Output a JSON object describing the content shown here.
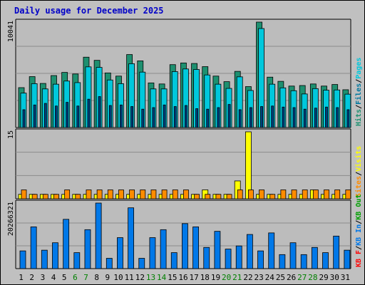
{
  "title": "Daily usage for December 2025",
  "colors": {
    "background": "#c0c0c0",
    "panel": "#bcbcbc",
    "hits": "#1e9070",
    "files": "#00c8dc",
    "pages": "#004080",
    "visits": "#ffff00",
    "sites": "#ff8c00",
    "kb_in": "#0078e8",
    "kb_out": "#00a000",
    "kb_f": "#ff0000",
    "title": "#0000c8"
  },
  "chart_data": [
    {
      "type": "bar",
      "title": "Hits / Files / Pages",
      "ymax_label": "10041",
      "right_legend": [
        {
          "text": "Hits",
          "color": "#1e9070"
        },
        {
          "text": "/",
          "color": "#000000"
        },
        {
          "text": "Files",
          "color": "#0078a0"
        },
        {
          "text": "/",
          "color": "#000000"
        },
        {
          "text": "Pages",
          "color": "#00c8dc"
        }
      ],
      "ylim": [
        0,
        10041
      ],
      "categories": [
        "1",
        "2",
        "3",
        "4",
        "5",
        "6",
        "7",
        "8",
        "9",
        "10",
        "11",
        "12",
        "13",
        "14",
        "15",
        "16",
        "17",
        "18",
        "19",
        "20",
        "21",
        "22",
        "23",
        "24",
        "25",
        "26",
        "27",
        "28",
        "29",
        "30",
        "31"
      ],
      "series": [
        {
          "name": "Hits",
          "values": [
            3800,
            4850,
            4200,
            4950,
            5250,
            5100,
            6700,
            6400,
            5200,
            4900,
            6950,
            6350,
            4250,
            4150,
            5990,
            6150,
            6100,
            5800,
            4900,
            4370,
            5350,
            3900,
            10041,
            4800,
            4400,
            3950,
            4000,
            4150,
            3950,
            4100,
            3600
          ]
        },
        {
          "name": "Files",
          "values": [
            3550,
            4450,
            3950,
            4400,
            4700,
            4550,
            6050,
            6000,
            4800,
            4450,
            6350,
            5550,
            3950,
            3950,
            5600,
            5850,
            5800,
            5280,
            4400,
            4000,
            5100,
            3800,
            9700,
            4400,
            4050,
            3780,
            3470,
            3980,
            3830,
            3850,
            3450
          ]
        },
        {
          "name": "Pages",
          "values": [
            1700,
            2150,
            2300,
            2050,
            2400,
            2050,
            2700,
            2950,
            2100,
            2150,
            2000,
            1750,
            1900,
            2150,
            2000,
            2100,
            1800,
            1750,
            1900,
            2200,
            1700,
            1900,
            2000,
            2050,
            1950,
            1900,
            1750,
            1850,
            1950,
            1900,
            1700
          ]
        }
      ]
    },
    {
      "type": "bar",
      "title": "Visits / Sites",
      "ymax_label": "15",
      "right_legend": [
        {
          "text": "Sites",
          "color": "#ff8c00"
        },
        {
          "text": "/",
          "color": "#000000"
        },
        {
          "text": "Visits",
          "color": "#ffff00"
        }
      ],
      "ylim": [
        0,
        15
      ],
      "series": [
        {
          "name": "Visits",
          "values": [
            1,
            1,
            1,
            1,
            1,
            1,
            1,
            1,
            1,
            1,
            1,
            1,
            1,
            1,
            1,
            1,
            1,
            2,
            1,
            1,
            4,
            15,
            1,
            1,
            1,
            1,
            1,
            2,
            1,
            1,
            1
          ]
        },
        {
          "name": "Sites",
          "values": [
            2,
            1,
            1,
            1,
            2,
            1,
            2,
            2,
            2,
            2,
            2,
            2,
            2,
            2,
            2,
            2,
            1,
            1,
            1,
            1,
            2,
            2,
            2,
            1,
            2,
            2,
            2,
            2,
            2,
            2,
            2
          ]
        }
      ]
    },
    {
      "type": "bar",
      "title": "KB F / KB In / KB Out",
      "ymax_label": "20266321",
      "right_legend": [
        {
          "text": "KB F",
          "color": "#ff0000"
        },
        {
          "text": "/",
          "color": "#000000"
        },
        {
          "text": "KB In",
          "color": "#0078e8"
        },
        {
          "text": "/",
          "color": "#000000"
        },
        {
          "text": "KB Out",
          "color": "#00a000"
        }
      ],
      "ylim": [
        0,
        20266321
      ],
      "series": [
        {
          "name": "KB F",
          "values": [
            5480000,
            12910000,
            5700000,
            8000000,
            15240000,
            4940000,
            12040000,
            20266321,
            3190000,
            9580000,
            18800000,
            3190000,
            9580000,
            12040000,
            4940000,
            13910000,
            12910000,
            6550000,
            11530000,
            6040000,
            7020000,
            10560000,
            5480000,
            11040000,
            4330000,
            8000000,
            4330000,
            6550000,
            4940000,
            10060000,
            5700000
          ]
        }
      ]
    }
  ],
  "x_labels": [
    {
      "text": "1",
      "color": "#000000"
    },
    {
      "text": "2",
      "color": "#000000"
    },
    {
      "text": "3",
      "color": "#000000"
    },
    {
      "text": "4",
      "color": "#000000"
    },
    {
      "text": "5",
      "color": "#000000"
    },
    {
      "text": "6",
      "color": "#008000"
    },
    {
      "text": "7",
      "color": "#008000"
    },
    {
      "text": "8",
      "color": "#000000"
    },
    {
      "text": "9",
      "color": "#000000"
    },
    {
      "text": "10",
      "color": "#000000"
    },
    {
      "text": "11",
      "color": "#000000"
    },
    {
      "text": "12",
      "color": "#000000"
    },
    {
      "text": "13",
      "color": "#008000"
    },
    {
      "text": "14",
      "color": "#008000"
    },
    {
      "text": "15",
      "color": "#000000"
    },
    {
      "text": "16",
      "color": "#000000"
    },
    {
      "text": "17",
      "color": "#000000"
    },
    {
      "text": "18",
      "color": "#000000"
    },
    {
      "text": "19",
      "color": "#000000"
    },
    {
      "text": "20",
      "color": "#008000"
    },
    {
      "text": "21",
      "color": "#008000"
    },
    {
      "text": "22",
      "color": "#000000"
    },
    {
      "text": "23",
      "color": "#000000"
    },
    {
      "text": "24",
      "color": "#000000"
    },
    {
      "text": "25",
      "color": "#000000"
    },
    {
      "text": "26",
      "color": "#000000"
    },
    {
      "text": "27",
      "color": "#008000"
    },
    {
      "text": "28",
      "color": "#008000"
    },
    {
      "text": "29",
      "color": "#000000"
    },
    {
      "text": "30",
      "color": "#000000"
    },
    {
      "text": "31",
      "color": "#000000"
    }
  ]
}
